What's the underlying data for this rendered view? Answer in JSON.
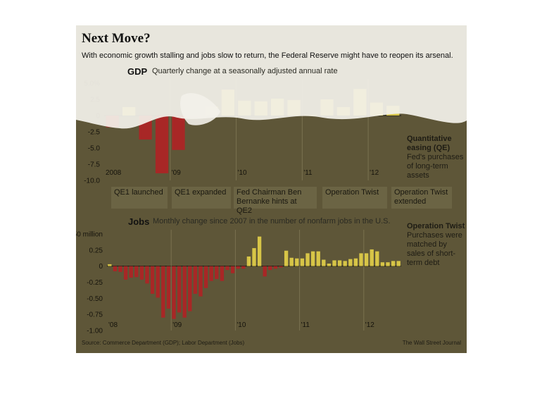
{
  "title": "Next Move?",
  "subtitle": "With economic growth stalling and jobs slow to return, the Federal Reserve might have to reopen its arsenal.",
  "source": "Source: Commerce Department (GDP); Labor Department (Jobs)",
  "credit": "The Wall Street Journal",
  "colors": {
    "negative": "#b51f23",
    "positive": "#ecd84a",
    "background": "#5e5638"
  },
  "annotations": {
    "qe_title": "Quantitative easing (QE)",
    "qe_text": "Fed's purchases of long-term assets",
    "twist_title": "Operation Twist",
    "twist_text": "Purchases were matched by sales of short-term debt"
  },
  "events": [
    {
      "label": "QE1 launched"
    },
    {
      "label": "QE1 expanded"
    },
    {
      "label": "Fed Chairman Ben Bernanke hints at QE2"
    },
    {
      "label": "Operation Twist"
    },
    {
      "label": "Operation Twist extended"
    }
  ],
  "chart_data": [
    {
      "type": "bar",
      "title": "GDP",
      "subtitle": "Quarterly change at a seasonally adjusted annual rate",
      "ylim": [
        -10,
        5
      ],
      "yticks": [
        5,
        2.5,
        0,
        -2.5,
        -5,
        -7.5,
        -10
      ],
      "ytick_labels": [
        "5.0%",
        "2.5",
        "0",
        "-2.5",
        "-5.0",
        "-7.5",
        "-10.0"
      ],
      "x_labels": [
        "2008",
        "'09",
        "'10",
        "'11",
        "'12"
      ],
      "x_label_at": [
        0,
        4,
        8,
        12,
        16
      ],
      "categories": [
        "2008 Q1",
        "2008 Q2",
        "2008 Q3",
        "2008 Q4",
        "2009 Q1",
        "2009 Q2",
        "2009 Q3",
        "2009 Q4",
        "2010 Q1",
        "2010 Q2",
        "2010 Q3",
        "2010 Q4",
        "2011 Q1",
        "2011 Q2",
        "2011 Q3",
        "2011 Q4",
        "2012 Q1",
        "2012 Q2"
      ],
      "values": [
        -1.8,
        1.3,
        -3.7,
        -8.9,
        -5.3,
        -0.3,
        1.4,
        4.0,
        2.3,
        2.2,
        2.6,
        2.4,
        0.1,
        2.5,
        1.3,
        4.1,
        2.0,
        1.5
      ]
    },
    {
      "type": "bar",
      "title": "Jobs",
      "subtitle": "Monthly change since 2007 in the number of nonfarm jobs in the U.S.",
      "ylim": [
        -1.0,
        0.5
      ],
      "yticks": [
        0.5,
        0.25,
        0,
        -0.25,
        -0.5,
        -0.75,
        -1.0
      ],
      "ytick_labels": [
        "0.50 million",
        "0.25",
        "0",
        "-0.25",
        "-0.50",
        "-0.75",
        "-1.00"
      ],
      "x_labels": [
        "'08",
        "'09",
        "'10",
        "'11",
        "'12"
      ],
      "x_label_at": [
        0,
        12,
        24,
        36,
        48
      ],
      "values": [
        0.03,
        -0.08,
        -0.09,
        -0.21,
        -0.18,
        -0.17,
        -0.21,
        -0.27,
        -0.43,
        -0.49,
        -0.8,
        -0.66,
        -0.82,
        -0.72,
        -0.8,
        -0.7,
        -0.43,
        -0.47,
        -0.34,
        -0.23,
        -0.2,
        -0.23,
        -0.06,
        -0.11,
        -0.04,
        -0.04,
        0.15,
        0.28,
        0.46,
        -0.16,
        -0.06,
        -0.04,
        -0.02,
        0.24,
        0.13,
        0.12,
        0.12,
        0.2,
        0.23,
        0.23,
        0.1,
        0.04,
        0.09,
        0.09,
        0.08,
        0.11,
        0.12,
        0.2,
        0.2,
        0.26,
        0.23,
        0.06,
        0.06,
        0.08,
        0.08
      ]
    }
  ]
}
